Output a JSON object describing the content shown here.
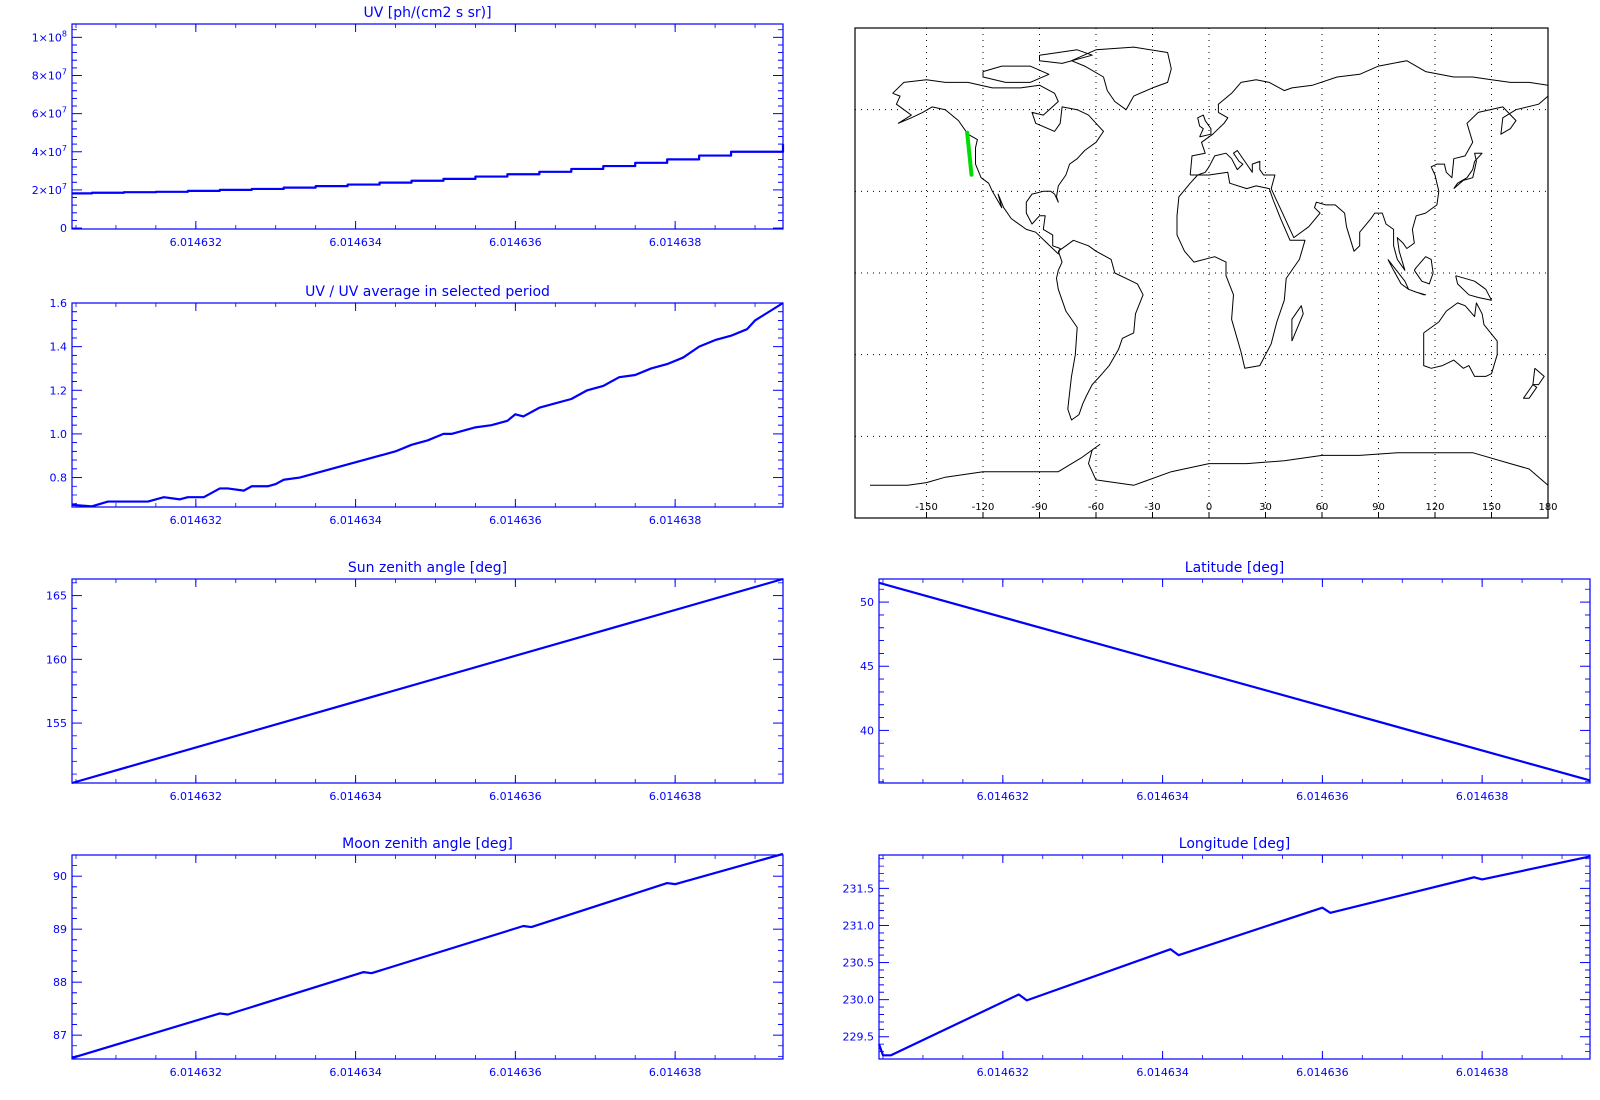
{
  "chart_data": [
    {
      "id": "uv",
      "type": "line",
      "title": "UV [ph/(cm2 s sr)]",
      "xlim": [
        6.01463045,
        6.01463935
      ],
      "ylim": [
        -500000.0,
        107000000.0
      ],
      "x_ticks": [
        {
          "v": 6.014632,
          "label": "6.014632"
        },
        {
          "v": 6.014634,
          "label": "6.014634"
        },
        {
          "v": 6.014636,
          "label": "6.014636"
        },
        {
          "v": 6.014638,
          "label": "6.014638"
        }
      ],
      "y_ticks": [
        {
          "v": 0,
          "base": "0",
          "exp": ""
        },
        {
          "v": 20000000.0,
          "base": "2×10",
          "exp": "7"
        },
        {
          "v": 40000000.0,
          "base": "4×10",
          "exp": "7"
        },
        {
          "v": 60000000.0,
          "base": "6×10",
          "exp": "7"
        },
        {
          "v": 80000000.0,
          "base": "8×10",
          "exp": "7"
        },
        {
          "v": 100000000.0,
          "base": "1×10",
          "exp": "8"
        }
      ],
      "color": "#0000ff",
      "style": "step",
      "x": [
        6.01463045,
        6.0146307,
        6.0146311,
        6.0146315,
        6.0146319,
        6.0146323,
        6.0146327,
        6.0146331,
        6.0146335,
        6.0146339,
        6.0146343,
        6.0146347,
        6.0146351,
        6.0146355,
        6.0146359,
        6.0146363,
        6.0146367,
        6.0146371,
        6.0146375,
        6.0146379,
        6.0146383,
        6.0146387,
        6.01463935
      ],
      "y": [
        18200000.0,
        18500000.0,
        18800000.0,
        19000000.0,
        19500000.0,
        20000000.0,
        20500000.0,
        21200000.0,
        22000000.0,
        22800000.0,
        23800000.0,
        24800000.0,
        25800000.0,
        27000000.0,
        28200000.0,
        29500000.0,
        31000000.0,
        32500000.0,
        34200000.0,
        36000000.0,
        38000000.0,
        40000000.0,
        44000000.0
      ]
    },
    {
      "id": "ratio",
      "type": "line",
      "title": "UV / UV average in selected period",
      "xlim": [
        6.01463045,
        6.01463935
      ],
      "ylim": [
        0.665,
        1.6
      ],
      "x_ticks": [
        {
          "v": 6.014632,
          "label": "6.014632"
        },
        {
          "v": 6.014634,
          "label": "6.014634"
        },
        {
          "v": 6.014636,
          "label": "6.014636"
        },
        {
          "v": 6.014638,
          "label": "6.014638"
        }
      ],
      "y_ticks": [
        {
          "v": 0.8,
          "label": "0.8"
        },
        {
          "v": 1.0,
          "label": "1.0"
        },
        {
          "v": 1.2,
          "label": "1.2"
        },
        {
          "v": 1.4,
          "label": "1.4"
        },
        {
          "v": 1.6,
          "label": "1.6"
        }
      ],
      "color": "#0000ff",
      "style": "line",
      "x": [
        6.01463045,
        6.0146307,
        6.0146309,
        6.0146314,
        6.0146316,
        6.0146318,
        6.0146319,
        6.0146321,
        6.0146323,
        6.0146324,
        6.0146326,
        6.0146327,
        6.0146329,
        6.014633,
        6.0146331,
        6.0146333,
        6.0146335,
        6.0146337,
        6.0146339,
        6.0146341,
        6.0146343,
        6.0146345,
        6.0146347,
        6.0146349,
        6.0146351,
        6.0146352,
        6.0146355,
        6.0146357,
        6.0146359,
        6.014636,
        6.0146361,
        6.0146363,
        6.0146365,
        6.0146367,
        6.0146369,
        6.0146371,
        6.0146373,
        6.0146375,
        6.0146377,
        6.0146379,
        6.0146381,
        6.0146383,
        6.0146385,
        6.0146387,
        6.0146389,
        6.014639,
        6.01463935
      ],
      "y": [
        0.675,
        0.668,
        0.69,
        0.69,
        0.71,
        0.7,
        0.71,
        0.71,
        0.75,
        0.75,
        0.74,
        0.76,
        0.76,
        0.77,
        0.79,
        0.8,
        0.82,
        0.84,
        0.86,
        0.88,
        0.9,
        0.92,
        0.95,
        0.97,
        1.0,
        1.0,
        1.03,
        1.04,
        1.06,
        1.09,
        1.08,
        1.12,
        1.14,
        1.16,
        1.2,
        1.22,
        1.26,
        1.27,
        1.3,
        1.32,
        1.35,
        1.4,
        1.43,
        1.45,
        1.48,
        1.52,
        1.6
      ]
    },
    {
      "id": "sza",
      "type": "line",
      "title": "Sun zenith angle [deg]",
      "xlim": [
        6.01463045,
        6.01463935
      ],
      "ylim": [
        150.3,
        166.3
      ],
      "x_ticks": [
        {
          "v": 6.014632,
          "label": "6.014632"
        },
        {
          "v": 6.014634,
          "label": "6.014634"
        },
        {
          "v": 6.014636,
          "label": "6.014636"
        },
        {
          "v": 6.014638,
          "label": "6.014638"
        }
      ],
      "y_ticks": [
        {
          "v": 155,
          "label": "155"
        },
        {
          "v": 160,
          "label": "160"
        },
        {
          "v": 165,
          "label": "165"
        }
      ],
      "color": "#0000ff",
      "style": "line",
      "x": [
        6.01463045,
        6.01463935
      ],
      "y": [
        150.3,
        166.3
      ]
    },
    {
      "id": "lat",
      "type": "line",
      "title": "Latitude [deg]",
      "xlim": [
        6.01463045,
        6.01463935
      ],
      "ylim": [
        35.9,
        51.8
      ],
      "x_ticks": [
        {
          "v": 6.014632,
          "label": "6.014632"
        },
        {
          "v": 6.014634,
          "label": "6.014634"
        },
        {
          "v": 6.014636,
          "label": "6.014636"
        },
        {
          "v": 6.014638,
          "label": "6.014638"
        }
      ],
      "y_ticks": [
        {
          "v": 40,
          "label": "40"
        },
        {
          "v": 45,
          "label": "45"
        },
        {
          "v": 50,
          "label": "50"
        }
      ],
      "color": "#0000ff",
      "style": "line",
      "x": [
        6.01463045,
        6.01463935
      ],
      "y": [
        51.5,
        36.1
      ]
    },
    {
      "id": "mza",
      "type": "line",
      "title": "Moon zenith angle [deg]",
      "xlim": [
        6.01463045,
        6.01463935
      ],
      "ylim": [
        86.55,
        90.4
      ],
      "x_ticks": [
        {
          "v": 6.014632,
          "label": "6.014632"
        },
        {
          "v": 6.014634,
          "label": "6.014634"
        },
        {
          "v": 6.014636,
          "label": "6.014636"
        },
        {
          "v": 6.014638,
          "label": "6.014638"
        }
      ],
      "y_ticks": [
        {
          "v": 87,
          "label": "87"
        },
        {
          "v": 88,
          "label": "88"
        },
        {
          "v": 89,
          "label": "89"
        },
        {
          "v": 90,
          "label": "90"
        }
      ],
      "color": "#0000ff",
      "style": "line",
      "x": [
        6.01463045,
        6.0146323,
        6.0146324,
        6.0146341,
        6.0146342,
        6.0146361,
        6.0146362,
        6.0146379,
        6.014638,
        6.01463935
      ],
      "y": [
        86.57,
        87.41,
        87.39,
        88.19,
        88.17,
        89.06,
        89.04,
        89.87,
        89.85,
        90.42
      ]
    },
    {
      "id": "lon",
      "type": "line",
      "title": "Longitude [deg]",
      "xlim": [
        6.01463045,
        6.01463935
      ],
      "ylim": [
        229.2,
        231.95
      ],
      "x_ticks": [
        {
          "v": 6.014632,
          "label": "6.014632"
        },
        {
          "v": 6.014634,
          "label": "6.014634"
        },
        {
          "v": 6.014636,
          "label": "6.014636"
        },
        {
          "v": 6.014638,
          "label": "6.014638"
        }
      ],
      "y_ticks": [
        {
          "v": 229.5,
          "label": "229.5"
        },
        {
          "v": 230.0,
          "label": "230.0"
        },
        {
          "v": 230.5,
          "label": "230.5"
        },
        {
          "v": 231.0,
          "label": "231.0"
        },
        {
          "v": 231.5,
          "label": "231.5"
        }
      ],
      "color": "#0000ff",
      "style": "line",
      "x": [
        6.01463045,
        6.0146305,
        6.0146306,
        6.0146322,
        6.0146323,
        6.0146341,
        6.0146342,
        6.014636,
        6.0146361,
        6.0146379,
        6.014638,
        6.01463935
      ],
      "y": [
        229.4,
        229.25,
        229.25,
        230.07,
        229.99,
        230.68,
        230.6,
        231.24,
        231.17,
        231.65,
        231.62,
        231.93
      ]
    }
  ],
  "map": {
    "type": "map",
    "x_ticks": [
      {
        "v": -150,
        "label": "-150"
      },
      {
        "v": -120,
        "label": "-120"
      },
      {
        "v": -90,
        "label": "-90"
      },
      {
        "v": -60,
        "label": "-60"
      },
      {
        "v": -30,
        "label": "-30"
      },
      {
        "v": 0,
        "label": "0"
      },
      {
        "v": 30,
        "label": "30"
      },
      {
        "v": 60,
        "label": "60"
      },
      {
        "v": 90,
        "label": "90"
      },
      {
        "v": 120,
        "label": "120"
      },
      {
        "v": 150,
        "label": "150"
      },
      {
        "v": 180,
        "label": "180"
      }
    ],
    "lon_range": [
      -180,
      180
    ],
    "lat_range": [
      -90,
      90
    ],
    "grid_lons": [
      -150,
      -120,
      -90,
      -60,
      -30,
      0,
      30,
      60,
      90,
      120,
      150
    ],
    "grid_lats": [
      -60,
      -30,
      0,
      30,
      60
    ],
    "track_color": "#00dd00",
    "track": [
      {
        "lon": -128.4,
        "lat": 51.5
      },
      {
        "lon": -126.1,
        "lat": 36.1
      }
    ]
  }
}
